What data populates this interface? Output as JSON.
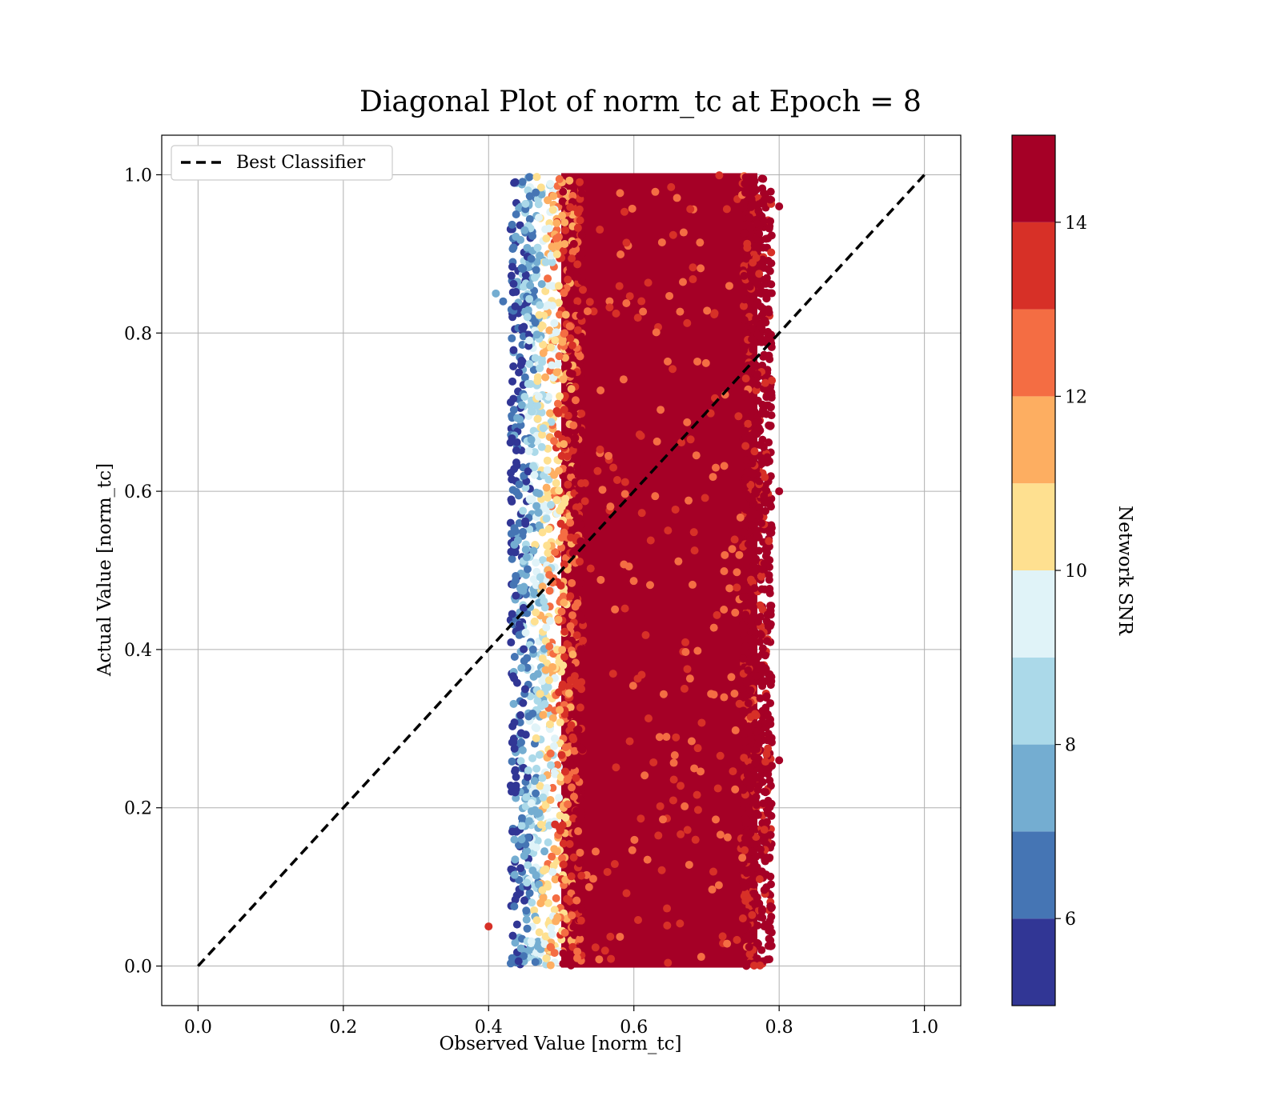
{
  "chart_data": {
    "type": "scatter",
    "title": "Diagonal Plot of norm_tc at Epoch = 8",
    "xlabel": "Observed Value [norm_tc]",
    "ylabel": "Actual Value [norm_tc]",
    "xlim": [
      -0.05,
      1.05
    ],
    "ylim": [
      -0.05,
      1.05
    ],
    "xticks": [
      "0.0",
      "0.2",
      "0.4",
      "0.6",
      "0.8",
      "1.0"
    ],
    "yticks": [
      "0.0",
      "0.2",
      "0.4",
      "0.6",
      "0.8",
      "1.0"
    ],
    "grid": true,
    "legend": {
      "placement": "upper-left",
      "entries": [
        "Best Classifier"
      ]
    },
    "reference_line": {
      "name": "Best Classifier",
      "style": "dashed",
      "color": "#000000",
      "x": [
        0.0,
        1.0
      ],
      "y": [
        0.0,
        1.0
      ]
    },
    "scatter_region": {
      "description_values": "dense point cloud",
      "x_range": [
        0.4,
        0.8
      ],
      "y_range": [
        0.0,
        1.0
      ],
      "snr_low_x_edge": 0.43,
      "snr_high_core_x": [
        0.5,
        0.77
      ]
    },
    "colorbar": {
      "label": "Network SNR",
      "range": [
        5,
        15
      ],
      "ticks": [
        "6",
        "8",
        "10",
        "12",
        "14"
      ],
      "levels": [
        5,
        6,
        7,
        8,
        9,
        10,
        11,
        12,
        13,
        14,
        15
      ],
      "colors": [
        "#313695",
        "#4575b4",
        "#74add1",
        "#abd9e9",
        "#e0f3f8",
        "#fee090",
        "#fdae61",
        "#f46d43",
        "#d73027",
        "#a50026"
      ]
    }
  }
}
